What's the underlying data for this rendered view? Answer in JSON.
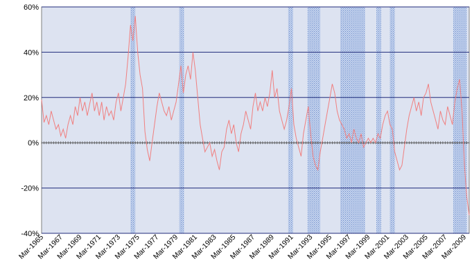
{
  "chart_data": {
    "type": "line",
    "title": "",
    "xlabel": "",
    "ylabel": "",
    "x_range": [
      "1965-03",
      "2009-09"
    ],
    "ylim": [
      -40,
      60
    ],
    "y_ticks": [
      {
        "value": -40,
        "label": "-40%"
      },
      {
        "value": -20,
        "label": "-20%"
      },
      {
        "value": 0,
        "label": "0%"
      },
      {
        "value": 20,
        "label": "20%"
      },
      {
        "value": 40,
        "label": "40%"
      },
      {
        "value": 60,
        "label": "60%"
      }
    ],
    "x_ticks": [
      {
        "date": "1965-03",
        "label": "Mar-1965"
      },
      {
        "date": "1967-03",
        "label": "Mar-1967"
      },
      {
        "date": "1969-03",
        "label": "Mar-1969"
      },
      {
        "date": "1971-03",
        "label": "Mar-1971"
      },
      {
        "date": "1973-03",
        "label": "Mar-1973"
      },
      {
        "date": "1975-03",
        "label": "Mar-1975"
      },
      {
        "date": "1977-03",
        "label": "Mar-1977"
      },
      {
        "date": "1979-03",
        "label": "Mar-1979"
      },
      {
        "date": "1981-03",
        "label": "Mar-1981"
      },
      {
        "date": "1983-03",
        "label": "Mar-1983"
      },
      {
        "date": "1985-03",
        "label": "Mar-1985"
      },
      {
        "date": "1987-03",
        "label": "Mar-1987"
      },
      {
        "date": "1989-03",
        "label": "Mar-1989"
      },
      {
        "date": "1991-03",
        "label": "Mar-1991"
      },
      {
        "date": "1993-03",
        "label": "Mar-1993"
      },
      {
        "date": "1995-03",
        "label": "Mar-1995"
      },
      {
        "date": "1997-03",
        "label": "Mar-1997"
      },
      {
        "date": "1999-03",
        "label": "Mar-1999"
      },
      {
        "date": "2001-03",
        "label": "Mar-2001"
      },
      {
        "date": "2003-03",
        "label": "Mar-2003"
      },
      {
        "date": "2005-03",
        "label": "Mar-2005"
      },
      {
        "date": "2007-03",
        "label": "Mar-2007"
      },
      {
        "date": "2009-03",
        "label": "Mar-2009"
      }
    ],
    "grid": {
      "horizontal": true,
      "vertical": false
    },
    "shaded_periods": [
      {
        "start": "1974-06",
        "end": "1974-12"
      },
      {
        "start": "1979-07",
        "end": "1980-01"
      },
      {
        "start": "1990-11",
        "end": "1991-05"
      },
      {
        "start": "1992-11",
        "end": "1994-03"
      },
      {
        "start": "1996-04",
        "end": "1998-11"
      },
      {
        "start": "2000-01",
        "end": "2000-07"
      },
      {
        "start": "2001-06",
        "end": "2001-12"
      },
      {
        "start": "2008-01",
        "end": "2009-06"
      }
    ],
    "series": [
      {
        "color": "#f07f7f",
        "points": [
          [
            "1965-03",
            19
          ],
          [
            "1965-06",
            9
          ],
          [
            "1965-09",
            12
          ],
          [
            "1965-12",
            8
          ],
          [
            "1966-03",
            14
          ],
          [
            "1966-06",
            10
          ],
          [
            "1966-09",
            6
          ],
          [
            "1966-12",
            8
          ],
          [
            "1967-03",
            3
          ],
          [
            "1967-06",
            6
          ],
          [
            "1967-09",
            2
          ],
          [
            "1967-12",
            8
          ],
          [
            "1968-03",
            12
          ],
          [
            "1968-06",
            8
          ],
          [
            "1968-09",
            16
          ],
          [
            "1968-12",
            12
          ],
          [
            "1969-03",
            20
          ],
          [
            "1969-06",
            14
          ],
          [
            "1969-09",
            18
          ],
          [
            "1969-12",
            12
          ],
          [
            "1970-03",
            17
          ],
          [
            "1970-06",
            22
          ],
          [
            "1970-09",
            14
          ],
          [
            "1970-12",
            18
          ],
          [
            "1971-03",
            12
          ],
          [
            "1971-06",
            18
          ],
          [
            "1971-09",
            10
          ],
          [
            "1971-12",
            16
          ],
          [
            "1972-03",
            12
          ],
          [
            "1972-06",
            14
          ],
          [
            "1972-09",
            10
          ],
          [
            "1972-12",
            18
          ],
          [
            "1973-03",
            22
          ],
          [
            "1973-06",
            14
          ],
          [
            "1973-09",
            20
          ],
          [
            "1973-12",
            26
          ],
          [
            "1974-03",
            38
          ],
          [
            "1974-06",
            52
          ],
          [
            "1974-09",
            45
          ],
          [
            "1974-12",
            56
          ],
          [
            "1975-03",
            40
          ],
          [
            "1975-06",
            30
          ],
          [
            "1975-09",
            24
          ],
          [
            "1975-12",
            5
          ],
          [
            "1976-03",
            -3
          ],
          [
            "1976-06",
            -8
          ],
          [
            "1976-09",
            0
          ],
          [
            "1976-12",
            8
          ],
          [
            "1977-03",
            16
          ],
          [
            "1977-06",
            22
          ],
          [
            "1977-09",
            18
          ],
          [
            "1977-12",
            14
          ],
          [
            "1978-03",
            12
          ],
          [
            "1978-06",
            16
          ],
          [
            "1978-09",
            10
          ],
          [
            "1978-12",
            14
          ],
          [
            "1979-03",
            18
          ],
          [
            "1979-06",
            26
          ],
          [
            "1979-09",
            34
          ],
          [
            "1979-12",
            22
          ],
          [
            "1980-03",
            30
          ],
          [
            "1980-06",
            34
          ],
          [
            "1980-09",
            28
          ],
          [
            "1980-12",
            40
          ],
          [
            "1981-03",
            32
          ],
          [
            "1981-06",
            20
          ],
          [
            "1981-09",
            8
          ],
          [
            "1981-12",
            2
          ],
          [
            "1982-03",
            -4
          ],
          [
            "1982-06",
            -2
          ],
          [
            "1982-09",
            0
          ],
          [
            "1982-12",
            -6
          ],
          [
            "1983-03",
            -3
          ],
          [
            "1983-06",
            -8
          ],
          [
            "1983-09",
            -12
          ],
          [
            "1983-12",
            -4
          ],
          [
            "1984-03",
            -2
          ],
          [
            "1984-06",
            6
          ],
          [
            "1984-09",
            10
          ],
          [
            "1984-12",
            4
          ],
          [
            "1985-03",
            8
          ],
          [
            "1985-06",
            0
          ],
          [
            "1985-09",
            -4
          ],
          [
            "1985-12",
            4
          ],
          [
            "1986-03",
            8
          ],
          [
            "1986-06",
            14
          ],
          [
            "1986-09",
            10
          ],
          [
            "1986-12",
            6
          ],
          [
            "1987-03",
            16
          ],
          [
            "1987-06",
            22
          ],
          [
            "1987-09",
            14
          ],
          [
            "1987-12",
            18
          ],
          [
            "1988-03",
            14
          ],
          [
            "1988-06",
            20
          ],
          [
            "1988-09",
            16
          ],
          [
            "1988-12",
            22
          ],
          [
            "1989-03",
            32
          ],
          [
            "1989-06",
            20
          ],
          [
            "1989-09",
            24
          ],
          [
            "1989-12",
            14
          ],
          [
            "1990-03",
            10
          ],
          [
            "1990-06",
            6
          ],
          [
            "1990-09",
            10
          ],
          [
            "1990-12",
            16
          ],
          [
            "1991-03",
            24
          ],
          [
            "1991-06",
            8
          ],
          [
            "1991-09",
            2
          ],
          [
            "1991-12",
            -2
          ],
          [
            "1992-03",
            -6
          ],
          [
            "1992-06",
            4
          ],
          [
            "1992-09",
            10
          ],
          [
            "1992-12",
            16
          ],
          [
            "1993-03",
            4
          ],
          [
            "1993-06",
            -6
          ],
          [
            "1993-09",
            -10
          ],
          [
            "1993-12",
            -12
          ],
          [
            "1994-03",
            -4
          ],
          [
            "1994-06",
            2
          ],
          [
            "1994-09",
            8
          ],
          [
            "1994-12",
            14
          ],
          [
            "1995-03",
            20
          ],
          [
            "1995-06",
            26
          ],
          [
            "1995-09",
            22
          ],
          [
            "1995-12",
            14
          ],
          [
            "1996-03",
            10
          ],
          [
            "1996-06",
            8
          ],
          [
            "1996-09",
            6
          ],
          [
            "1996-12",
            2
          ],
          [
            "1997-03",
            4
          ],
          [
            "1997-06",
            0
          ],
          [
            "1997-09",
            6
          ],
          [
            "1997-12",
            2
          ],
          [
            "1998-03",
            0
          ],
          [
            "1998-06",
            4
          ],
          [
            "1998-09",
            -2
          ],
          [
            "1998-12",
            0
          ],
          [
            "1999-03",
            2
          ],
          [
            "1999-06",
            0
          ],
          [
            "1999-09",
            2
          ],
          [
            "1999-12",
            0
          ],
          [
            "2000-03",
            4
          ],
          [
            "2000-06",
            2
          ],
          [
            "2000-09",
            8
          ],
          [
            "2000-12",
            12
          ],
          [
            "2001-03",
            14
          ],
          [
            "2001-06",
            8
          ],
          [
            "2001-09",
            6
          ],
          [
            "2001-12",
            -4
          ],
          [
            "2002-03",
            -8
          ],
          [
            "2002-06",
            -12
          ],
          [
            "2002-09",
            -10
          ],
          [
            "2002-12",
            -2
          ],
          [
            "2003-03",
            6
          ],
          [
            "2003-06",
            12
          ],
          [
            "2003-09",
            16
          ],
          [
            "2003-12",
            20
          ],
          [
            "2004-03",
            14
          ],
          [
            "2004-06",
            18
          ],
          [
            "2004-09",
            12
          ],
          [
            "2004-12",
            20
          ],
          [
            "2005-03",
            22
          ],
          [
            "2005-06",
            26
          ],
          [
            "2005-09",
            18
          ],
          [
            "2005-12",
            14
          ],
          [
            "2006-03",
            10
          ],
          [
            "2006-06",
            6
          ],
          [
            "2006-09",
            14
          ],
          [
            "2006-12",
            10
          ],
          [
            "2007-03",
            8
          ],
          [
            "2007-06",
            16
          ],
          [
            "2007-09",
            12
          ],
          [
            "2007-12",
            8
          ],
          [
            "2008-03",
            18
          ],
          [
            "2008-06",
            24
          ],
          [
            "2008-09",
            28
          ],
          [
            "2008-12",
            14
          ],
          [
            "2009-03",
            -10
          ],
          [
            "2009-06",
            -24
          ],
          [
            "2009-09",
            -32
          ]
        ]
      }
    ]
  }
}
